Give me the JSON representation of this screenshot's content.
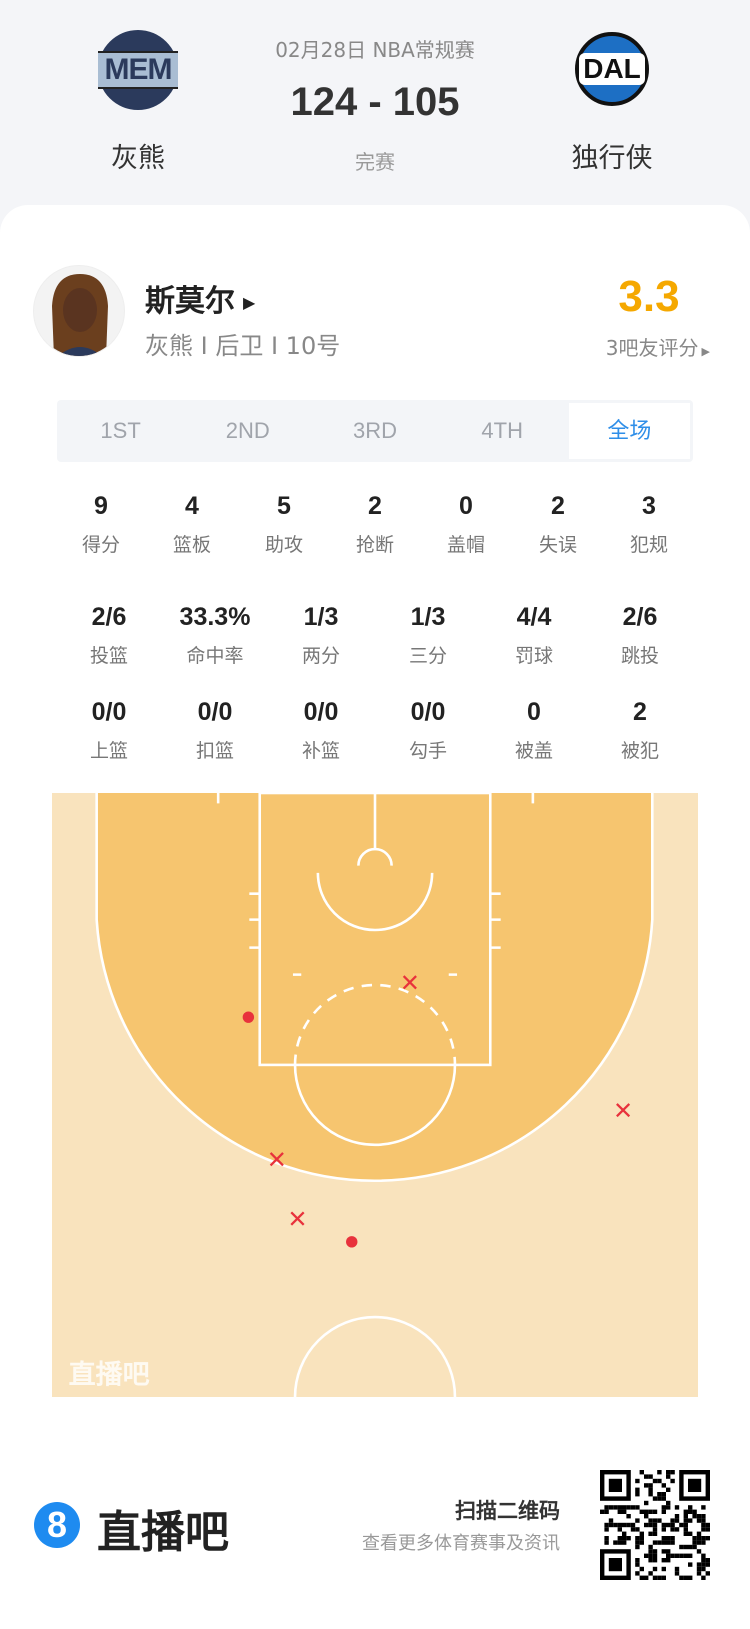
{
  "header": {
    "date_league": "02月28日 NBA常规赛",
    "score": "124 - 105",
    "status": "完赛",
    "home": {
      "abbr": "MEM",
      "name": "灰熊"
    },
    "away": {
      "abbr": "DAL",
      "name": "独行侠"
    }
  },
  "player": {
    "name": "斯莫尔",
    "info": "灰熊 I 后卫 I 10号",
    "rating": "3.3",
    "rating_label": "3吧友评分",
    "rating_color": "#f5a800"
  },
  "tabs": [
    {
      "label": "1ST"
    },
    {
      "label": "2ND"
    },
    {
      "label": "3RD"
    },
    {
      "label": "4TH"
    },
    {
      "label": "全场",
      "selected": true
    }
  ],
  "stats_row1": [
    {
      "v": "9",
      "l": "得分"
    },
    {
      "v": "4",
      "l": "篮板"
    },
    {
      "v": "5",
      "l": "助攻"
    },
    {
      "v": "2",
      "l": "抢断"
    },
    {
      "v": "0",
      "l": "盖帽"
    },
    {
      "v": "2",
      "l": "失误"
    },
    {
      "v": "3",
      "l": "犯规"
    }
  ],
  "stats_row2": [
    {
      "v": "2/6",
      "l": "投篮"
    },
    {
      "v": "33.3%",
      "l": "命中率"
    },
    {
      "v": "1/3",
      "l": "两分"
    },
    {
      "v": "1/3",
      "l": "三分"
    },
    {
      "v": "4/4",
      "l": "罚球"
    },
    {
      "v": "2/6",
      "l": "跳投"
    }
  ],
  "stats_row3": [
    {
      "v": "0/0",
      "l": "上篮"
    },
    {
      "v": "0/0",
      "l": "扣篮"
    },
    {
      "v": "0/0",
      "l": "补篮"
    },
    {
      "v": "0/0",
      "l": "勾手"
    },
    {
      "v": "0",
      "l": "被盖"
    },
    {
      "v": "2",
      "l": "被犯"
    }
  ],
  "shot_chart": {
    "watermark": "直播吧",
    "made_color": "#e8323c",
    "miss_color": "#e8323c",
    "shots": [
      {
        "x_ft": -9.8,
        "y_ft": 12.3,
        "made": true
      },
      {
        "x_ft": -1.8,
        "y_ft": 29.7,
        "made": true
      },
      {
        "x_ft": 2.7,
        "y_ft": 9.6,
        "made": false
      },
      {
        "x_ft": 19.2,
        "y_ft": 19.5,
        "made": false
      },
      {
        "x_ft": -7.6,
        "y_ft": 23.3,
        "made": false
      },
      {
        "x_ft": -6.0,
        "y_ft": 27.9,
        "made": false
      }
    ]
  },
  "footer": {
    "brand": "直播吧",
    "brand_icon": "8",
    "scan": "扫描二维码",
    "scan_sub": "查看更多体育赛事及资讯"
  }
}
